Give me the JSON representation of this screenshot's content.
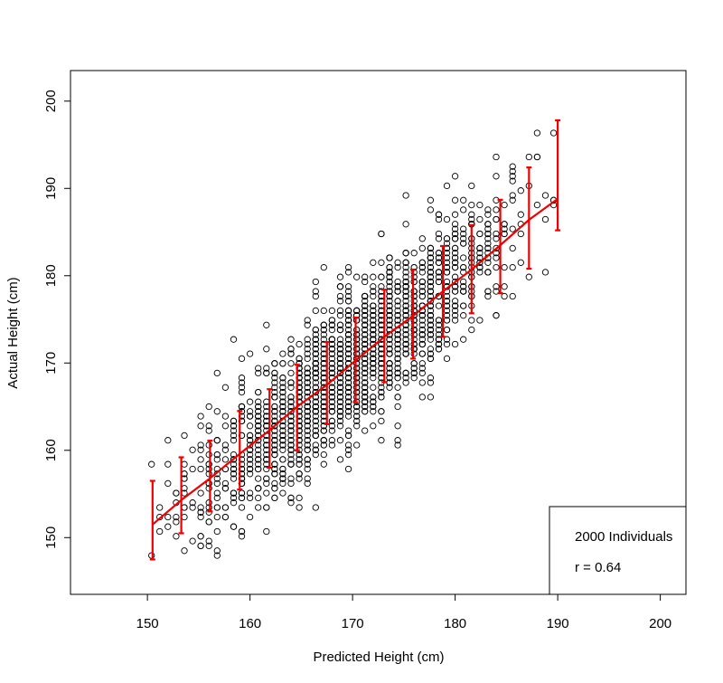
{
  "chart_data": {
    "type": "scatter",
    "title": "",
    "xlabel": "Predicted Height (cm)",
    "ylabel": "Actual Height (cm)",
    "xlim": [
      142.5,
      202.5
    ],
    "ylim": [
      143.5,
      203.5
    ],
    "xticks": [
      150,
      160,
      170,
      180,
      190,
      200
    ],
    "yticks": [
      150,
      160,
      170,
      180,
      190,
      200
    ],
    "grid": false,
    "colors": {
      "points": "#000000",
      "fit": "#ee0000",
      "frame": "#000000"
    },
    "legend": {
      "placement": "bottom-right",
      "lines": [
        "2000 Individuals",
        "r = 0.64"
      ]
    },
    "scatter": {
      "n_points": 2000,
      "correlation": 0.64,
      "mean_x": 170,
      "sd_x": 7.5,
      "mean_y": 170,
      "sd_y": 8.7,
      "slope": 0.95,
      "residual_sd": 4.3,
      "x_step": 0.8,
      "y_step": 0.55,
      "x_range": [
        150.5,
        190
      ],
      "y_range": [
        146.5,
        197.2
      ]
    },
    "conditional_means": {
      "x": [
        150.5,
        153.3,
        156.1,
        159.0,
        161.9,
        164.6,
        167.5,
        170.3,
        173.1,
        175.9,
        178.8,
        181.6,
        184.4,
        187.2,
        190.0
      ],
      "mean": [
        151.5,
        154.3,
        156.8,
        159.6,
        162.3,
        165.0,
        167.5,
        170.3,
        173.0,
        175.4,
        178.2,
        180.7,
        183.5,
        186.4,
        188.8
      ],
      "low": [
        147.5,
        150.5,
        153.0,
        155.5,
        158.0,
        160.0,
        163.0,
        165.5,
        167.8,
        170.5,
        173.0,
        175.7,
        178.0,
        180.8,
        185.2
      ],
      "high": [
        156.5,
        159.2,
        161.1,
        164.5,
        167.0,
        169.8,
        172.4,
        175.2,
        178.4,
        180.7,
        183.4,
        185.8,
        188.7,
        192.4,
        197.8
      ]
    }
  }
}
